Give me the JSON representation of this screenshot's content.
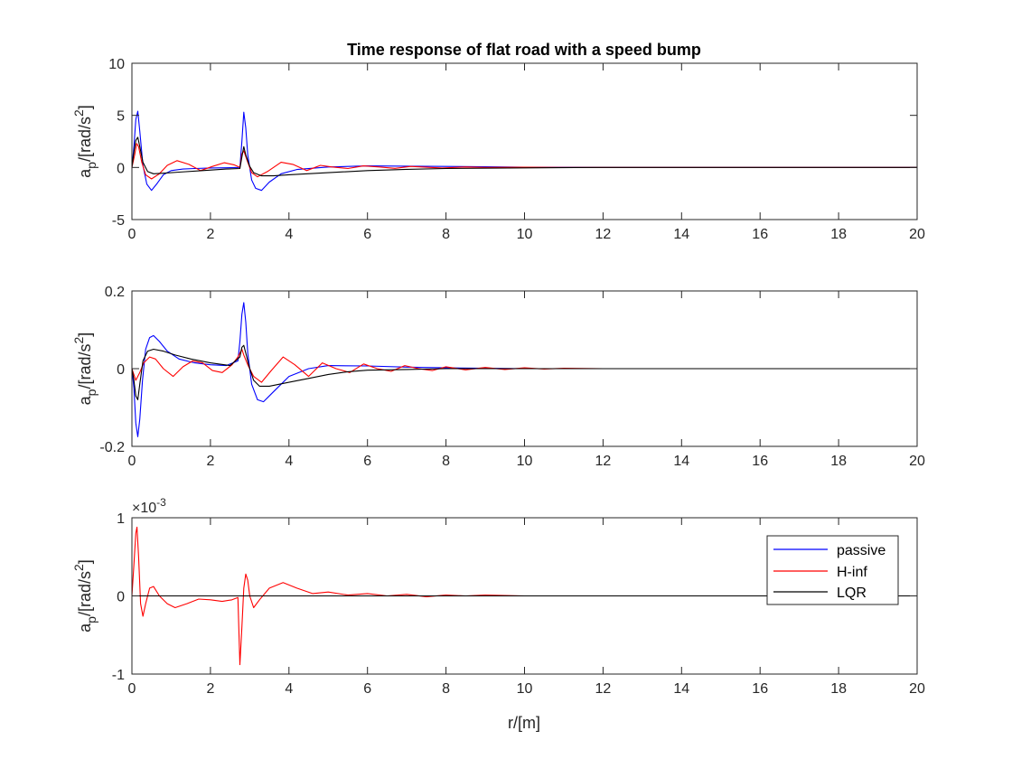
{
  "figure": {
    "title": "Time response of flat road with a speed bump",
    "xlabel": "r/[m]"
  },
  "colors": {
    "passive": "#0000ff",
    "hinf": "#ff0000",
    "lqr": "#000000",
    "axis": "#262626"
  },
  "legend": {
    "placement": "top-right of third subplot",
    "items": [
      {
        "label": "passive",
        "color": "#0000ff"
      },
      {
        "label": "H-inf",
        "color": "#ff0000"
      },
      {
        "label": "LQR",
        "color": "#000000"
      }
    ]
  },
  "chart_data": [
    {
      "type": "line",
      "title": "Time response of flat road with a speed bump",
      "xlabel": "",
      "ylabel_main": "a",
      "ylabel_sub": "p",
      "ylabel_unit": "/[rad/s",
      "ylabel_sup": "2",
      "ylabel_close": "]",
      "xlim": [
        0,
        20
      ],
      "ylim": [
        -5,
        10
      ],
      "xticks": [
        0,
        2,
        4,
        6,
        8,
        10,
        12,
        14,
        16,
        18,
        20
      ],
      "yticks": [
        -5,
        0,
        5,
        10
      ],
      "ytick_labels": [
        "-5",
        "0",
        "5",
        "10"
      ],
      "exponent_label": "",
      "grid": false,
      "series": [
        {
          "name": "passive",
          "color": "#0000ff",
          "x": [
            0,
            0.05,
            0.1,
            0.15,
            0.2,
            0.28,
            0.38,
            0.5,
            0.65,
            0.8,
            1.0,
            1.3,
            1.6,
            2.0,
            2.4,
            2.75,
            2.8,
            2.85,
            2.9,
            2.95,
            3.05,
            3.15,
            3.3,
            3.5,
            3.8,
            4.2,
            5.0,
            6.0,
            7.0,
            8.0,
            9.0,
            10.0,
            12.0,
            20.0
          ],
          "y": [
            0,
            2.0,
            4.6,
            5.4,
            3.5,
            0.2,
            -1.6,
            -2.2,
            -1.5,
            -0.7,
            -0.3,
            -0.15,
            -0.1,
            -0.05,
            -0.03,
            0,
            2.5,
            5.3,
            3.8,
            1.2,
            -1.2,
            -2.0,
            -2.2,
            -1.4,
            -0.6,
            -0.2,
            0.05,
            0.15,
            0.12,
            0.1,
            0.06,
            0.03,
            0,
            0
          ]
        },
        {
          "name": "H-inf",
          "color": "#ff0000",
          "x": [
            0,
            0.07,
            0.12,
            0.17,
            0.25,
            0.35,
            0.5,
            0.7,
            0.9,
            1.15,
            1.45,
            1.75,
            2.05,
            2.35,
            2.6,
            2.75,
            2.8,
            2.85,
            2.95,
            3.05,
            3.2,
            3.45,
            3.8,
            4.1,
            4.45,
            4.8,
            5.1,
            5.5,
            5.9,
            6.3,
            6.7,
            7.1,
            7.5,
            7.9,
            8.5,
            9.0,
            10.0,
            11.0,
            20.0
          ],
          "y": [
            0,
            1.2,
            2.3,
            2.0,
            0.5,
            -0.7,
            -1.1,
            -0.6,
            0.2,
            0.65,
            0.3,
            -0.3,
            0.1,
            0.45,
            0.25,
            0,
            1.3,
            1.6,
            0.5,
            -0.5,
            -0.9,
            -0.4,
            0.5,
            0.3,
            -0.3,
            0.2,
            0.05,
            -0.1,
            0.15,
            0.05,
            -0.08,
            0.1,
            0.02,
            -0.05,
            0.05,
            0,
            0.02,
            0,
            0
          ]
        },
        {
          "name": "LQR",
          "color": "#000000",
          "x": [
            0,
            0.05,
            0.1,
            0.15,
            0.2,
            0.28,
            0.4,
            0.55,
            0.8,
            1.2,
            1.8,
            2.4,
            2.75,
            2.8,
            2.85,
            2.9,
            3.0,
            3.1,
            3.3,
            3.6,
            4.0,
            5.0,
            6.0,
            7.0,
            8.0,
            10.0,
            12.0,
            20.0
          ],
          "y": [
            0,
            1.5,
            2.6,
            2.9,
            2.0,
            0.5,
            -0.4,
            -0.6,
            -0.55,
            -0.45,
            -0.3,
            -0.15,
            -0.1,
            1.0,
            2.0,
            1.2,
            0.1,
            -0.5,
            -0.8,
            -0.8,
            -0.7,
            -0.5,
            -0.3,
            -0.18,
            -0.1,
            -0.04,
            0,
            0
          ]
        }
      ]
    },
    {
      "type": "line",
      "title": "",
      "xlabel": "",
      "ylabel_main": "a",
      "ylabel_sub": "p",
      "ylabel_unit": "/[rad/s",
      "ylabel_sup": "2",
      "ylabel_close": "]",
      "xlim": [
        0,
        20
      ],
      "ylim": [
        -0.2,
        0.2
      ],
      "xticks": [
        0,
        2,
        4,
        6,
        8,
        10,
        12,
        14,
        16,
        18,
        20
      ],
      "yticks": [
        -0.2,
        0,
        0.2
      ],
      "ytick_labels": [
        "-0.2",
        "0",
        "0.2"
      ],
      "exponent_label": "",
      "grid": false,
      "series": [
        {
          "name": "passive",
          "color": "#0000ff",
          "x": [
            0,
            0.05,
            0.1,
            0.15,
            0.2,
            0.27,
            0.35,
            0.45,
            0.55,
            0.7,
            0.9,
            1.2,
            1.6,
            2.0,
            2.4,
            2.7,
            2.75,
            2.8,
            2.85,
            2.9,
            2.95,
            3.05,
            3.2,
            3.35,
            3.6,
            4.0,
            4.5,
            5.0,
            6.0,
            7.0,
            8.0,
            9.0,
            10.0,
            20.0
          ],
          "y": [
            0,
            -0.05,
            -0.14,
            -0.175,
            -0.13,
            -0.03,
            0.05,
            0.08,
            0.085,
            0.07,
            0.045,
            0.025,
            0.015,
            0.01,
            0.008,
            0.02,
            0.07,
            0.14,
            0.17,
            0.12,
            0.04,
            -0.04,
            -0.08,
            -0.085,
            -0.06,
            -0.02,
            0.0,
            0.008,
            0.007,
            0.004,
            0.002,
            0.001,
            0,
            0
          ]
        },
        {
          "name": "H-inf",
          "color": "#ff0000",
          "x": [
            0,
            0.1,
            0.2,
            0.3,
            0.45,
            0.6,
            0.8,
            1.05,
            1.3,
            1.55,
            1.8,
            2.05,
            2.3,
            2.55,
            2.7,
            2.8,
            2.85,
            2.95,
            3.1,
            3.3,
            3.55,
            3.85,
            4.15,
            4.5,
            4.85,
            5.2,
            5.55,
            5.9,
            6.25,
            6.6,
            6.95,
            7.3,
            7.65,
            8.0,
            8.5,
            9.0,
            9.5,
            10.0,
            10.5,
            11.0,
            12.0,
            20.0
          ],
          "y": [
            0,
            -0.03,
            -0.01,
            0.015,
            0.03,
            0.025,
            0.0,
            -0.02,
            0.005,
            0.02,
            0.015,
            -0.005,
            -0.01,
            0.01,
            0.03,
            0.05,
            0.035,
            0.01,
            -0.02,
            -0.035,
            -0.005,
            0.03,
            0.01,
            -0.02,
            0.015,
            0.0,
            -0.01,
            0.012,
            0.0,
            -0.007,
            0.008,
            0.0,
            -0.005,
            0.005,
            -0.003,
            0.003,
            -0.002,
            0.002,
            -0.001,
            0.001,
            0,
            0
          ]
        },
        {
          "name": "LQR",
          "color": "#000000",
          "x": [
            0,
            0.05,
            0.1,
            0.15,
            0.2,
            0.28,
            0.4,
            0.55,
            0.8,
            1.1,
            1.5,
            2.0,
            2.5,
            2.75,
            2.8,
            2.85,
            2.9,
            3.0,
            3.1,
            3.25,
            3.5,
            4.0,
            4.5,
            5.0,
            5.5,
            6.0,
            7.0,
            8.0,
            9.0,
            10.0,
            12.0,
            20.0
          ],
          "y": [
            0,
            -0.03,
            -0.07,
            -0.08,
            -0.04,
            0.02,
            0.045,
            0.05,
            0.045,
            0.035,
            0.025,
            0.015,
            0.008,
            0.03,
            0.055,
            0.06,
            0.04,
            0.0,
            -0.03,
            -0.045,
            -0.045,
            -0.035,
            -0.025,
            -0.015,
            -0.008,
            -0.004,
            -0.002,
            0,
            0,
            0,
            0,
            0
          ]
        }
      ]
    },
    {
      "type": "line",
      "title": "",
      "xlabel": "r/[m]",
      "ylabel_main": "a",
      "ylabel_sub": "p",
      "ylabel_unit": "/[rad/s",
      "ylabel_sup": "2",
      "ylabel_close": "]",
      "xlim": [
        0,
        20
      ],
      "ylim": [
        -0.001,
        0.001
      ],
      "xticks": [
        0,
        2,
        4,
        6,
        8,
        10,
        12,
        14,
        16,
        18,
        20
      ],
      "yticks": [
        -0.001,
        0,
        0.001
      ],
      "ytick_labels": [
        "-1",
        "0",
        "1"
      ],
      "exponent_label": "×10",
      "exponent_sup": "-3",
      "grid": false,
      "series": [
        {
          "name": "passive",
          "color": "#0000ff",
          "x": [
            0,
            20
          ],
          "y": [
            0,
            0
          ]
        },
        {
          "name": "H-inf",
          "color": "#ff0000",
          "x": [
            0,
            0.05,
            0.1,
            0.13,
            0.17,
            0.22,
            0.28,
            0.35,
            0.45,
            0.55,
            0.7,
            0.9,
            1.1,
            1.4,
            1.7,
            2.0,
            2.3,
            2.55,
            2.7,
            2.75,
            2.8,
            2.85,
            2.9,
            2.95,
            3.0,
            3.1,
            3.25,
            3.5,
            3.85,
            4.2,
            4.6,
            5.0,
            5.5,
            6.0,
            6.5,
            7.0,
            7.5,
            8.0,
            8.5,
            9.0,
            10.0,
            11.0,
            20.0
          ],
          "y": [
            0,
            0.0004,
            0.0008,
            0.00088,
            0.0005,
            -0.0001,
            -0.00026,
            -0.0001,
            0.0001,
            0.00012,
            0.0,
            -0.0001,
            -0.00015,
            -0.0001,
            -4e-05,
            -5e-05,
            -7e-05,
            -5e-05,
            -2e-05,
            -0.00088,
            -0.0004,
            0.0001,
            0.00028,
            0.0002,
            0.0,
            -0.00015,
            -5e-05,
            0.0001,
            0.00017,
            0.0001,
            3e-05,
            5e-05,
            1e-05,
            3e-05,
            0.0,
            2e-05,
            -1e-05,
            1e-05,
            0.0,
            1e-05,
            0,
            0,
            0
          ]
        },
        {
          "name": "LQR",
          "color": "#000000",
          "x": [
            0,
            20
          ],
          "y": [
            0,
            0
          ]
        }
      ]
    }
  ]
}
